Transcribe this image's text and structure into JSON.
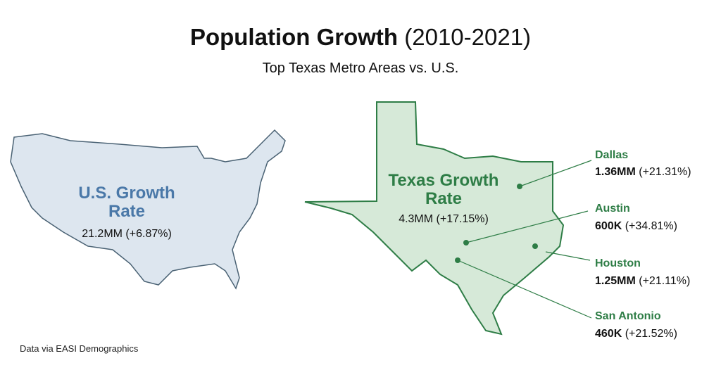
{
  "title": {
    "main": "Population Growth",
    "years": "(2010-2021)"
  },
  "subtitle": "Top Texas Metro Areas vs. U.S.",
  "us": {
    "label": "U.S. Growth Rate",
    "value": "21.2MM (+6.87%)"
  },
  "texas": {
    "label": "Texas Growth Rate",
    "value": "4.3MM (+17.15%)"
  },
  "cities": [
    {
      "name": "Dallas",
      "value": "1.36MM",
      "change": "(+21.31%)"
    },
    {
      "name": "Austin",
      "value": "600K",
      "change": "(+34.81%)"
    },
    {
      "name": "Houston",
      "value": "1.25MM",
      "change": "(+21.11%)"
    },
    {
      "name": "San Antonio",
      "value": "460K",
      "change": "(+21.52%)"
    }
  ],
  "source": "Data via EASI Demographics"
}
